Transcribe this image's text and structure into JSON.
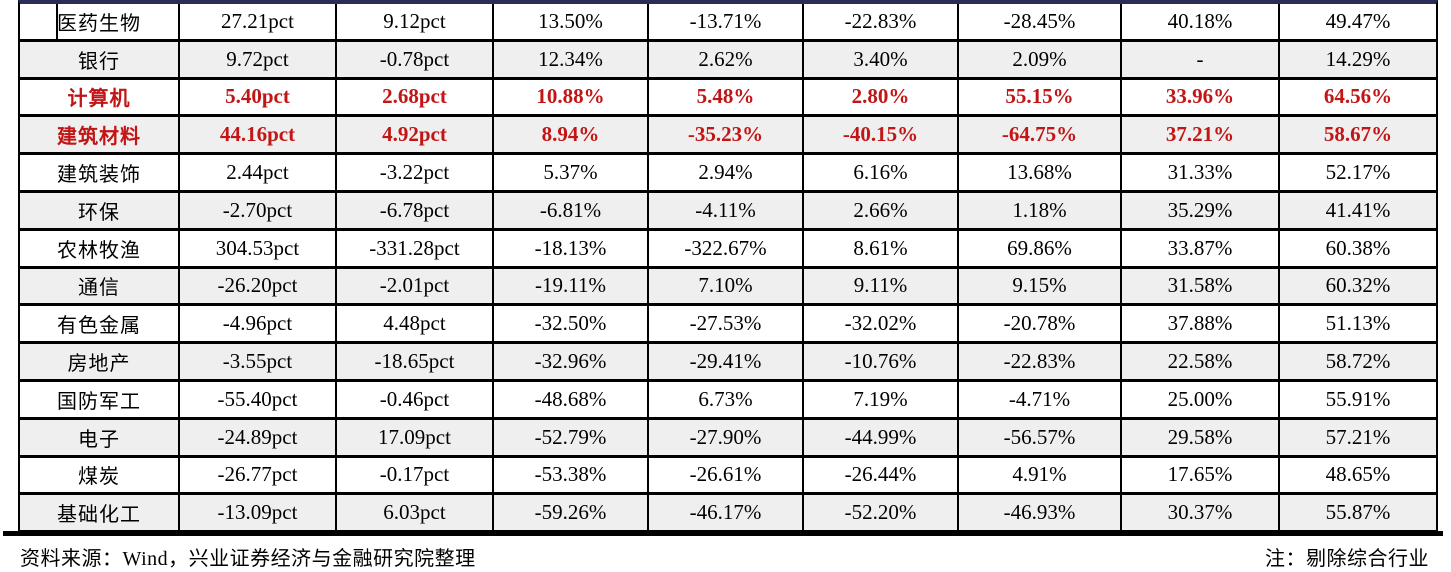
{
  "colors": {
    "top_rule": "#2A2D55",
    "row_alt_bg": "#EFEFEF",
    "highlight_text": "#C21515",
    "text": "#000000",
    "border": "#000000"
  },
  "chart_data": {
    "type": "table",
    "header_visible": false,
    "column_count": 9,
    "value_units": [
      "pct",
      "pct",
      "%",
      "%",
      "%",
      "%",
      "%",
      "%"
    ],
    "rows": [
      {
        "name": "医药生物",
        "highlight": false,
        "values": [
          "27.21pct",
          "9.12pct",
          "13.50%",
          "-13.71%",
          "-22.83%",
          "-28.45%",
          "40.18%",
          "49.47%"
        ]
      },
      {
        "name": "银行",
        "highlight": false,
        "values": [
          "9.72pct",
          "-0.78pct",
          "12.34%",
          "2.62%",
          "3.40%",
          "2.09%",
          "-",
          "14.29%"
        ]
      },
      {
        "name": "计算机",
        "highlight": true,
        "values": [
          "5.40pct",
          "2.68pct",
          "10.88%",
          "5.48%",
          "2.80%",
          "55.15%",
          "33.96%",
          "64.56%"
        ]
      },
      {
        "name": "建筑材料",
        "highlight": true,
        "values": [
          "44.16pct",
          "4.92pct",
          "8.94%",
          "-35.23%",
          "-40.15%",
          "-64.75%",
          "37.21%",
          "58.67%"
        ]
      },
      {
        "name": "建筑装饰",
        "highlight": false,
        "values": [
          "2.44pct",
          "-3.22pct",
          "5.37%",
          "2.94%",
          "6.16%",
          "13.68%",
          "31.33%",
          "52.17%"
        ]
      },
      {
        "name": "环保",
        "highlight": false,
        "values": [
          "-2.70pct",
          "-6.78pct",
          "-6.81%",
          "-4.11%",
          "2.66%",
          "1.18%",
          "35.29%",
          "41.41%"
        ]
      },
      {
        "name": "农林牧渔",
        "highlight": false,
        "values": [
          "304.53pct",
          "-331.28pct",
          "-18.13%",
          "-322.67%",
          "8.61%",
          "69.86%",
          "33.87%",
          "60.38%"
        ]
      },
      {
        "name": "通信",
        "highlight": false,
        "values": [
          "-26.20pct",
          "-2.01pct",
          "-19.11%",
          "7.10%",
          "9.11%",
          "9.15%",
          "31.58%",
          "60.32%"
        ]
      },
      {
        "name": "有色金属",
        "highlight": false,
        "values": [
          "-4.96pct",
          "4.48pct",
          "-32.50%",
          "-27.53%",
          "-32.02%",
          "-20.78%",
          "37.88%",
          "51.13%"
        ]
      },
      {
        "name": "房地产",
        "highlight": false,
        "values": [
          "-3.55pct",
          "-18.65pct",
          "-32.96%",
          "-29.41%",
          "-10.76%",
          "-22.83%",
          "22.58%",
          "58.72%"
        ]
      },
      {
        "name": "国防军工",
        "highlight": false,
        "values": [
          "-55.40pct",
          "-0.46pct",
          "-48.68%",
          "6.73%",
          "7.19%",
          "-4.71%",
          "25.00%",
          "55.91%"
        ]
      },
      {
        "name": "电子",
        "highlight": false,
        "values": [
          "-24.89pct",
          "17.09pct",
          "-52.79%",
          "-27.90%",
          "-44.99%",
          "-56.57%",
          "29.58%",
          "57.21%"
        ]
      },
      {
        "name": "煤炭",
        "highlight": false,
        "values": [
          "-26.77pct",
          "-0.17pct",
          "-53.38%",
          "-26.61%",
          "-26.44%",
          "4.91%",
          "17.65%",
          "48.65%"
        ]
      },
      {
        "name": "基础化工",
        "highlight": false,
        "values": [
          "-13.09pct",
          "6.03pct",
          "-59.26%",
          "-46.17%",
          "-52.20%",
          "-46.93%",
          "30.37%",
          "55.87%"
        ]
      }
    ]
  },
  "footer": {
    "source": "资料来源：Wind，兴业证券经济与金融研究院整理",
    "note": "注：剔除综合行业"
  }
}
